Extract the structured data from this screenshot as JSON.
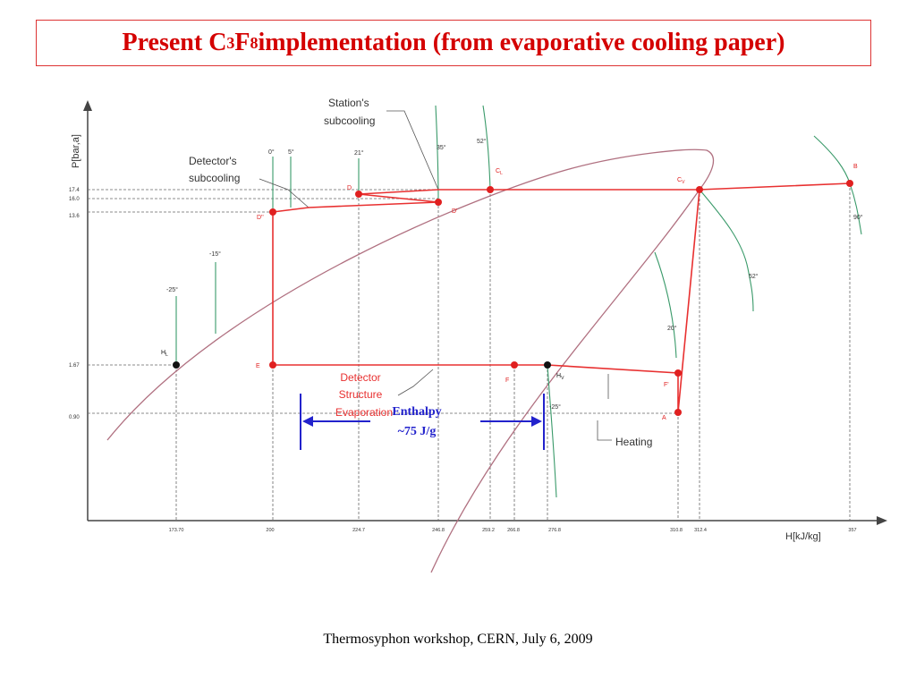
{
  "title": {
    "part1": "Present C",
    "sub1": "3",
    "part2": "F",
    "sub2": "8",
    "part3": " implementation (from evaporative cooling paper)"
  },
  "axes": {
    "y_label": "P[bar,a]",
    "x_label": "H[kJ/kg]"
  },
  "y_ticks": [
    "17.4",
    "16.0",
    "13.6",
    "1.67",
    "0.90"
  ],
  "x_ticks": [
    "173.70",
    "200",
    "224.7",
    "246.8",
    "259.2",
    "266.8",
    "276.8",
    "310.8",
    "312.4",
    "357"
  ],
  "angle_labels": {
    "t0": "0°",
    "t5": "5°",
    "t21": "21°",
    "t35": "35°",
    "t52": "52°",
    "tm15": "-15°",
    "tm25": "-25°",
    "t52b": "52°",
    "t20": "20°",
    "t90": "90°",
    "tm25b": "-25°"
  },
  "point_labels": {
    "D": "D",
    "Dp": "D'",
    "Dpp": "D''",
    "CL": "C",
    "CL_sub": "L",
    "CV": "C",
    "CV_sub": "V",
    "B": "B",
    "HL": "H",
    "HL_sub": "L",
    "E": "E",
    "F": "F",
    "Fp": "F'",
    "HV": "H",
    "HV_sub": "V",
    "A": "A"
  },
  "annotations": {
    "stations_subcooling_1": "Station's",
    "stations_subcooling_2": "subcooling",
    "detectors_subcooling_1": "Detector's",
    "detectors_subcooling_2": "subcooling",
    "detector_structure_1": "Detector",
    "detector_structure_2": "Structure",
    "detector_structure_3": "Evaporation",
    "heating": "Heating",
    "enthalpy_1": "Enthalpy",
    "enthalpy_2": "~75 J/g"
  },
  "colors": {
    "cycle": "#e83030",
    "dome": "#b07080",
    "isotherm": "#3a9a6a",
    "arrow": "#2222cc",
    "title": "#d40000"
  },
  "footer": "Thermosyphon workshop, CERN, July 6, 2009"
}
